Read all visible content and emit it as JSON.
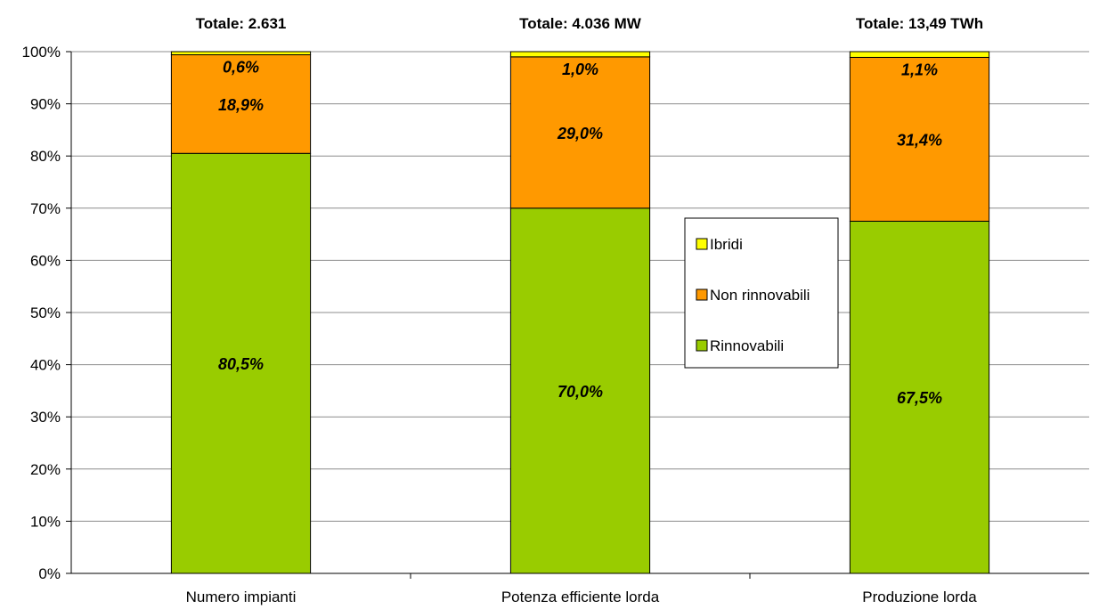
{
  "chart_data": {
    "type": "bar",
    "stacked": true,
    "categories": [
      "Numero impianti",
      "Potenza efficiente lorda",
      "Produzione lorda"
    ],
    "totals": [
      "Totale: 2.631",
      "Totale: 4.036 MW",
      "Totale: 13,49 TWh"
    ],
    "series": [
      {
        "name": "Rinnovabili",
        "color": "#99cc00",
        "values": [
          80.5,
          70.0,
          67.5
        ],
        "labels": [
          "80,5%",
          "70,0%",
          "67,5%"
        ]
      },
      {
        "name": "Non rinnovabili",
        "color": "#ff9900",
        "values": [
          18.9,
          29.0,
          31.4
        ],
        "labels": [
          "18,9%",
          "29,0%",
          "31,4%"
        ]
      },
      {
        "name": "Ibridi",
        "color": "#ffff00",
        "values": [
          0.6,
          1.0,
          1.1
        ],
        "labels": [
          "0,6%",
          "1,0%",
          "1,1%"
        ]
      }
    ],
    "ylim": [
      0,
      100
    ],
    "yticks": [
      "0%",
      "10%",
      "20%",
      "30%",
      "40%",
      "50%",
      "60%",
      "70%",
      "80%",
      "90%",
      "100%"
    ],
    "legend": {
      "order": [
        "Ibridi",
        "Non rinnovabili",
        "Rinnovabili"
      ],
      "placement": "center-right"
    },
    "grid": true
  }
}
